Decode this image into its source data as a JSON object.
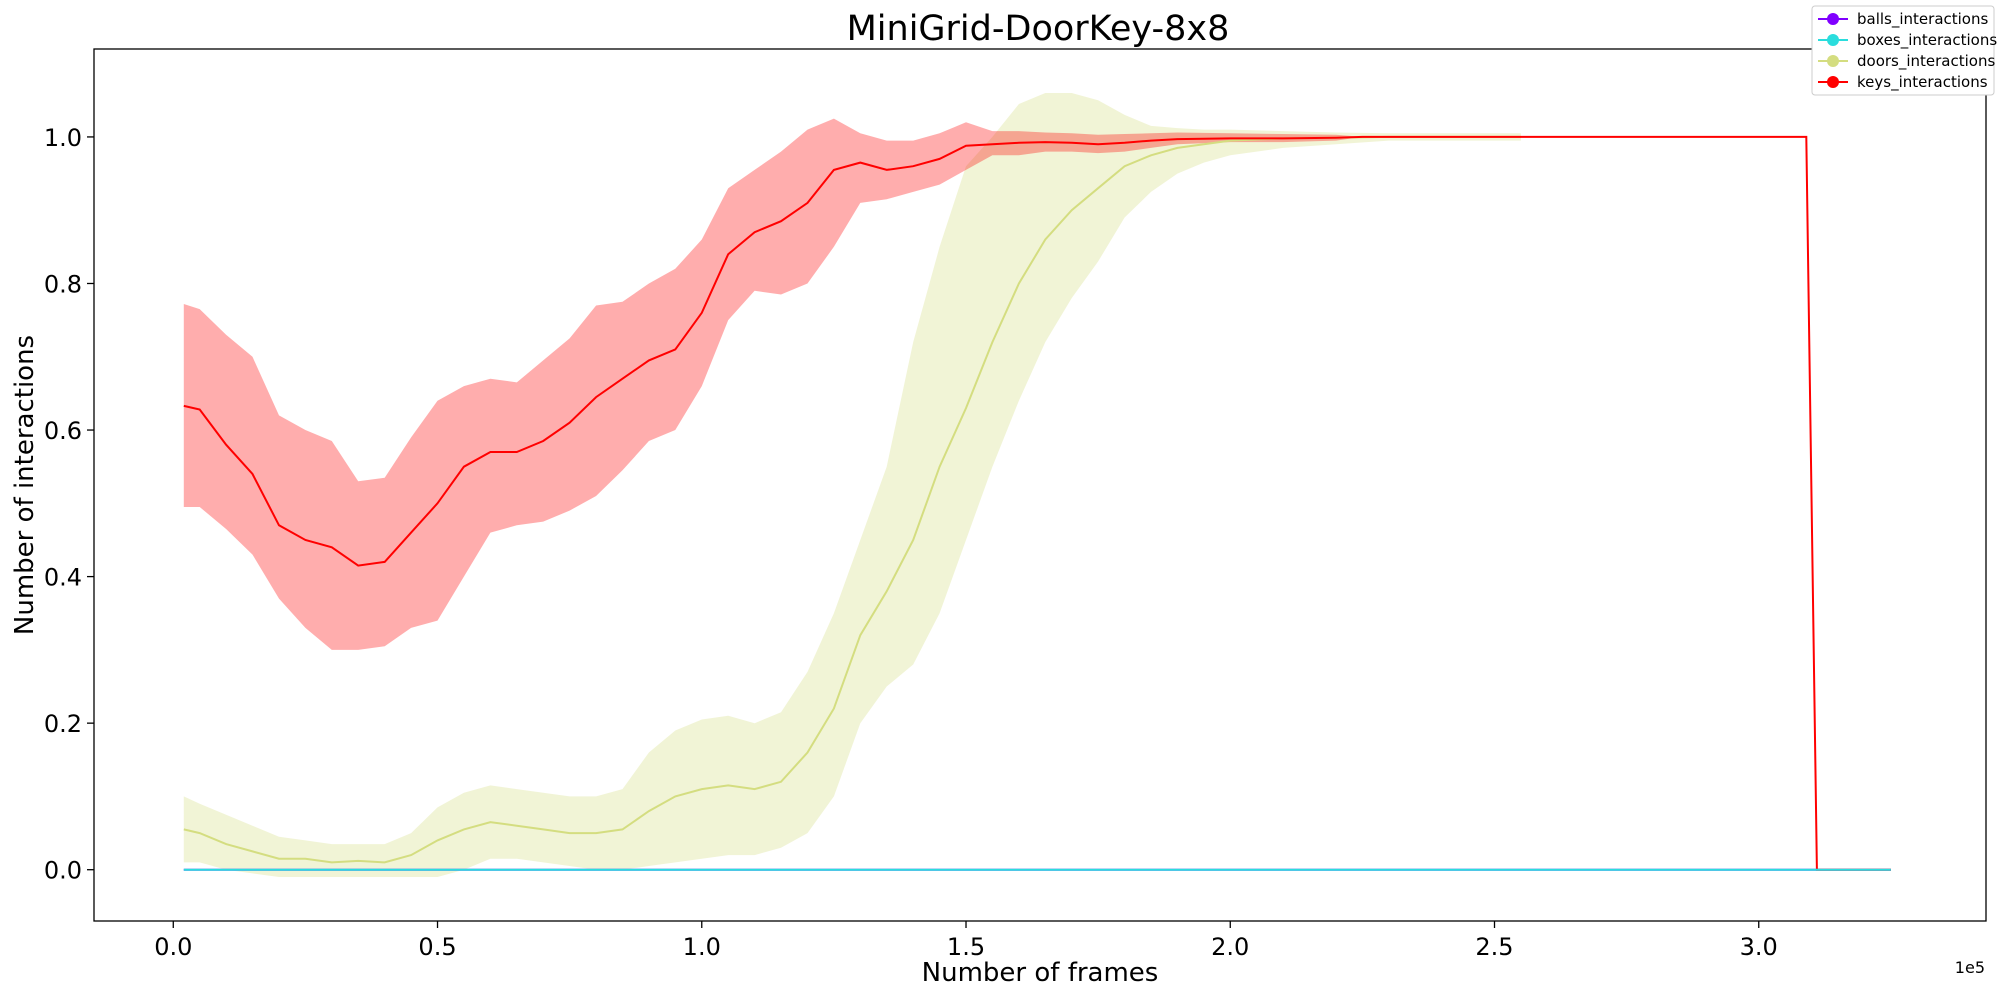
{
  "chart_data": {
    "type": "line",
    "title": "MiniGrid-DoorKey-8x8",
    "xlabel": "Number of frames",
    "ylabel": "Number of interactions",
    "x_offset_label": "1e5",
    "xlim": [
      -0.15,
      3.43
    ],
    "ylim": [
      -0.07,
      1.12
    ],
    "x_ticks": [
      0.0,
      0.5,
      1.0,
      1.5,
      2.0,
      2.5,
      3.0
    ],
    "x_tick_labels": [
      "0.0",
      "0.5",
      "1.0",
      "1.5",
      "2.0",
      "2.5",
      "3.0"
    ],
    "y_ticks": [
      0.0,
      0.2,
      0.4,
      0.6,
      0.8,
      1.0
    ],
    "y_tick_labels": [
      "0.0",
      "0.2",
      "0.4",
      "0.6",
      "0.8",
      "1.0"
    ],
    "grid": false,
    "legend_position": "top-right",
    "series": [
      {
        "name": "balls_interactions",
        "color": "#8000ff",
        "x": [
          0.02,
          3.25
        ],
        "mean": [
          0.0,
          0.0
        ],
        "lower": [
          0.0,
          0.0
        ],
        "upper": [
          0.0,
          0.0
        ]
      },
      {
        "name": "doors_interactions",
        "color": "#d4dd80",
        "x": [
          0.02,
          0.05,
          0.1,
          0.15,
          0.2,
          0.25,
          0.3,
          0.35,
          0.4,
          0.45,
          0.5,
          0.55,
          0.6,
          0.65,
          0.7,
          0.75,
          0.8,
          0.85,
          0.9,
          0.95,
          1.0,
          1.05,
          1.1,
          1.15,
          1.2,
          1.25,
          1.3,
          1.35,
          1.4,
          1.45,
          1.5,
          1.55,
          1.6,
          1.65,
          1.7,
          1.75,
          1.8,
          1.85,
          1.9,
          1.95,
          2.0,
          2.1,
          2.2,
          2.3,
          2.4,
          2.5,
          2.55
        ],
        "mean": [
          0.055,
          0.05,
          0.035,
          0.025,
          0.015,
          0.015,
          0.01,
          0.012,
          0.01,
          0.02,
          0.04,
          0.055,
          0.065,
          0.06,
          0.055,
          0.05,
          0.05,
          0.055,
          0.08,
          0.1,
          0.11,
          0.115,
          0.11,
          0.12,
          0.16,
          0.22,
          0.32,
          0.38,
          0.45,
          0.55,
          0.63,
          0.72,
          0.8,
          0.86,
          0.9,
          0.93,
          0.96,
          0.975,
          0.985,
          0.99,
          0.995,
          0.998,
          0.999,
          1.0,
          1.0,
          1.0,
          1.0
        ],
        "lower": [
          0.01,
          0.01,
          0.0,
          -0.005,
          -0.01,
          -0.01,
          -0.01,
          -0.01,
          -0.01,
          -0.01,
          -0.01,
          0.0,
          0.015,
          0.015,
          0.01,
          0.005,
          0.0,
          0.0,
          0.005,
          0.01,
          0.015,
          0.02,
          0.02,
          0.03,
          0.05,
          0.1,
          0.2,
          0.25,
          0.28,
          0.35,
          0.45,
          0.55,
          0.64,
          0.72,
          0.78,
          0.83,
          0.89,
          0.925,
          0.95,
          0.965,
          0.975,
          0.985,
          0.99,
          0.995,
          0.995,
          0.995,
          0.995
        ],
        "upper": [
          0.1,
          0.09,
          0.075,
          0.06,
          0.045,
          0.04,
          0.035,
          0.035,
          0.035,
          0.05,
          0.085,
          0.105,
          0.115,
          0.11,
          0.105,
          0.1,
          0.1,
          0.11,
          0.16,
          0.19,
          0.205,
          0.21,
          0.2,
          0.215,
          0.27,
          0.35,
          0.45,
          0.55,
          0.72,
          0.85,
          0.96,
          1.0,
          1.045,
          1.06,
          1.06,
          1.05,
          1.03,
          1.015,
          1.012,
          1.01,
          1.01,
          1.008,
          1.006,
          1.005,
          1.005,
          1.005,
          1.005
        ]
      },
      {
        "name": "keys_interactions",
        "color": "#ff0000",
        "x": [
          0.02,
          0.05,
          0.1,
          0.15,
          0.2,
          0.25,
          0.3,
          0.35,
          0.4,
          0.45,
          0.5,
          0.55,
          0.6,
          0.65,
          0.7,
          0.75,
          0.8,
          0.85,
          0.9,
          0.95,
          1.0,
          1.05,
          1.1,
          1.15,
          1.2,
          1.25,
          1.3,
          1.35,
          1.4,
          1.45,
          1.5,
          1.55,
          1.6,
          1.65,
          1.7,
          1.75,
          1.8,
          1.85,
          1.9,
          2.0,
          2.1,
          2.2,
          2.25,
          3.09,
          3.11,
          3.25
        ],
        "mean": [
          0.633,
          0.628,
          0.58,
          0.54,
          0.47,
          0.45,
          0.44,
          0.415,
          0.42,
          0.46,
          0.5,
          0.55,
          0.57,
          0.57,
          0.585,
          0.61,
          0.645,
          0.67,
          0.695,
          0.71,
          0.76,
          0.84,
          0.87,
          0.885,
          0.91,
          0.955,
          0.965,
          0.955,
          0.96,
          0.97,
          0.988,
          0.99,
          0.992,
          0.993,
          0.992,
          0.99,
          0.992,
          0.995,
          0.997,
          0.998,
          0.998,
          0.999,
          1.0,
          1.0,
          0.0,
          0.0
        ],
        "lower": [
          0.495,
          0.495,
          0.465,
          0.43,
          0.37,
          0.33,
          0.3,
          0.3,
          0.305,
          0.33,
          0.34,
          0.4,
          0.46,
          0.47,
          0.475,
          0.49,
          0.51,
          0.545,
          0.585,
          0.6,
          0.66,
          0.75,
          0.79,
          0.785,
          0.8,
          0.85,
          0.91,
          0.915,
          0.925,
          0.935,
          0.955,
          0.975,
          0.975,
          0.98,
          0.98,
          0.978,
          0.98,
          0.985,
          0.99,
          0.993,
          0.993,
          0.995,
          1.0,
          1.0,
          0.0,
          0.0
        ],
        "upper": [
          0.772,
          0.765,
          0.73,
          0.7,
          0.62,
          0.6,
          0.585,
          0.53,
          0.535,
          0.59,
          0.64,
          0.66,
          0.67,
          0.665,
          0.695,
          0.725,
          0.77,
          0.775,
          0.8,
          0.82,
          0.86,
          0.93,
          0.955,
          0.98,
          1.01,
          1.025,
          1.005,
          0.995,
          0.995,
          1.005,
          1.02,
          1.008,
          1.008,
          1.006,
          1.005,
          1.003,
          1.004,
          1.005,
          1.006,
          1.005,
          1.004,
          1.003,
          1.0,
          1.0,
          0.0,
          0.0
        ]
      },
      {
        "name": "boxes_interactions",
        "color": "#2adddd",
        "x": [
          0.02,
          3.25
        ],
        "mean": [
          0.0,
          0.0
        ],
        "lower": [
          0.0,
          0.0
        ],
        "upper": [
          0.0,
          0.0
        ]
      }
    ],
    "legend_order": [
      "balls_interactions",
      "boxes_interactions",
      "doors_interactions",
      "keys_interactions"
    ]
  }
}
